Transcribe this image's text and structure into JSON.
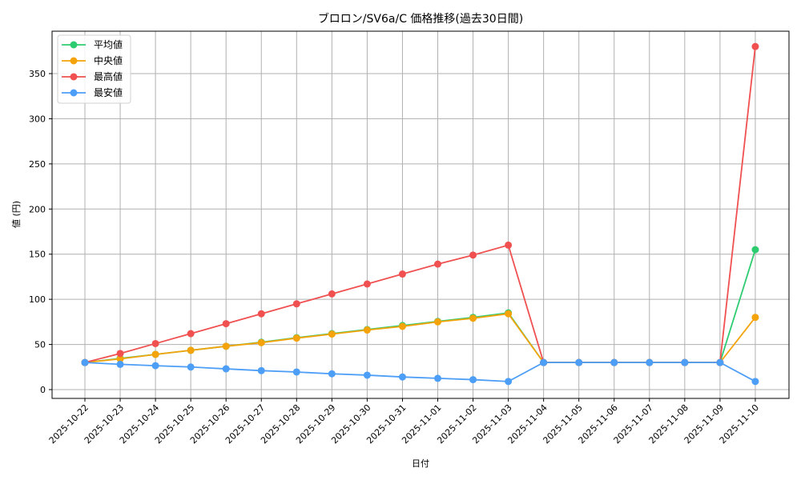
{
  "chart_data": {
    "type": "line",
    "title": "ブロロン/SV6a/C 価格推移(過去30日間)",
    "xlabel": "日付",
    "ylabel": "値 (円)",
    "ylim": [
      -10,
      395
    ],
    "yticks": [
      0,
      50,
      100,
      150,
      200,
      250,
      300,
      350
    ],
    "grid": true,
    "legend_position": "upper left",
    "categories": [
      "2025-10-22",
      "2025-10-23",
      "2025-10-24",
      "2025-10-25",
      "2025-10-26",
      "2025-10-27",
      "2025-10-28",
      "2025-10-29",
      "2025-10-30",
      "2025-10-31",
      "2025-11-01",
      "2025-11-02",
      "2025-11-03",
      "2025-11-04",
      "2025-11-05",
      "2025-11-06",
      "2025-11-07",
      "2025-11-08",
      "2025-11-09",
      "2025-11-10"
    ],
    "series": [
      {
        "name": "平均値",
        "color": "#2ecc71",
        "values": [
          30,
          34.5,
          39,
          43.5,
          48,
          52.5,
          57.5,
          62,
          66.5,
          71,
          75.5,
          80,
          85,
          30,
          30,
          30,
          30,
          30,
          30,
          155
        ]
      },
      {
        "name": "中央値",
        "color": "#f5a30a",
        "values": [
          30,
          34,
          39,
          43.5,
          48,
          52,
          57,
          61.5,
          66,
          70,
          75,
          79,
          84,
          30,
          30,
          30,
          30,
          30,
          30,
          80
        ]
      },
      {
        "name": "最高値",
        "color": "#f05050",
        "values": [
          30,
          40,
          51,
          62,
          73,
          84,
          95,
          106,
          117,
          128,
          139,
          149,
          160,
          30,
          30,
          30,
          30,
          30,
          30,
          380
        ]
      },
      {
        "name": "最安値",
        "color": "#4d9ef7",
        "values": [
          30,
          28,
          26.5,
          25,
          23,
          21,
          19.5,
          17.5,
          16,
          14,
          12.5,
          11,
          9,
          30,
          30,
          30,
          30,
          30,
          30,
          9
        ]
      }
    ]
  }
}
